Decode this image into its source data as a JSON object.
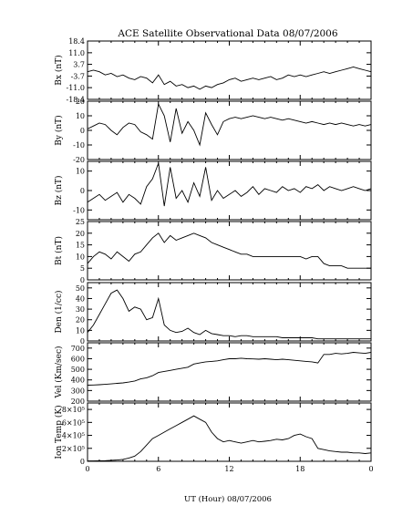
{
  "page": {
    "title": "ACE Satellite Observational Data   08/07/2006",
    "xlabel": "UT (Hour)   08/07/2006",
    "x_ticks": [
      "0",
      "6",
      "12",
      "18",
      "0"
    ]
  },
  "chart_data": [
    {
      "type": "line",
      "ylabel": "Bx (nT)",
      "ylim": [
        -18.4,
        18.4
      ],
      "yticks": [
        "18.4",
        "11.0",
        "3.7",
        "-3.7",
        "-11.0",
        "-18.4"
      ],
      "xlim": [
        0,
        24
      ],
      "x": [
        0,
        0.5,
        1,
        1.5,
        2,
        2.5,
        3,
        3.5,
        4,
        4.5,
        5,
        5.5,
        6,
        6.5,
        7,
        7.5,
        8,
        8.5,
        9,
        9.5,
        10,
        10.5,
        11,
        11.5,
        12,
        12.5,
        13,
        13.5,
        14,
        14.5,
        15,
        15.5,
        16,
        16.5,
        17,
        17.5,
        18,
        18.5,
        19,
        19.5,
        20,
        20.5,
        21,
        21.5,
        22,
        22.5,
        23,
        23.5,
        24
      ],
      "series": [
        {
          "values": [
            -1,
            0,
            -1,
            -3,
            -2,
            -4,
            -3,
            -5,
            -6,
            -4,
            -5,
            -8,
            -3,
            -9,
            -7,
            -10,
            -9,
            -11,
            -10,
            -12,
            -10,
            -11,
            -9,
            -8,
            -6,
            -5,
            -7,
            -6,
            -5,
            -6,
            -5,
            -4,
            -6,
            -5,
            -3,
            -4,
            -3,
            -4,
            -3,
            -2,
            -1,
            -2,
            -1,
            0,
            1,
            2,
            1,
            0,
            -1
          ]
        }
      ]
    },
    {
      "type": "line",
      "ylabel": "By (nT)",
      "ylim": [
        -20,
        20
      ],
      "yticks": [
        "20",
        "10",
        "0",
        "-10",
        "-20"
      ],
      "xlim": [
        0,
        24
      ],
      "x": [
        0,
        0.5,
        1,
        1.5,
        2,
        2.5,
        3,
        3.5,
        4,
        4.5,
        5,
        5.5,
        6,
        6.5,
        7,
        7.5,
        8,
        8.5,
        9,
        9.5,
        10,
        10.5,
        11,
        11.5,
        12,
        12.5,
        13,
        13.5,
        14,
        14.5,
        15,
        15.5,
        16,
        16.5,
        17,
        17.5,
        18,
        18.5,
        19,
        19.5,
        20,
        20.5,
        21,
        21.5,
        22,
        22.5,
        23,
        23.5,
        24
      ],
      "series": [
        {
          "values": [
            1,
            3,
            5,
            4,
            0,
            -3,
            2,
            5,
            4,
            -1,
            -3,
            -6,
            18,
            10,
            -8,
            15,
            -2,
            6,
            0,
            -10,
            12,
            4,
            -3,
            6,
            8,
            9,
            8,
            9,
            10,
            9,
            8,
            9,
            8,
            7,
            8,
            7,
            6,
            5,
            6,
            5,
            4,
            5,
            4,
            5,
            4,
            3,
            4,
            3,
            4
          ]
        }
      ]
    },
    {
      "type": "line",
      "ylabel": "Bz (nT)",
      "ylim": [
        -15,
        15
      ],
      "yticks": [
        "10",
        "0",
        "-10"
      ],
      "xlim": [
        0,
        24
      ],
      "x": [
        0,
        0.5,
        1,
        1.5,
        2,
        2.5,
        3,
        3.5,
        4,
        4.5,
        5,
        5.5,
        6,
        6.5,
        7,
        7.5,
        8,
        8.5,
        9,
        9.5,
        10,
        10.5,
        11,
        11.5,
        12,
        12.5,
        13,
        13.5,
        14,
        14.5,
        15,
        15.5,
        16,
        16.5,
        17,
        17.5,
        18,
        18.5,
        19,
        19.5,
        20,
        20.5,
        21,
        21.5,
        22,
        22.5,
        23,
        23.5,
        24
      ],
      "series": [
        {
          "values": [
            -6,
            -4,
            -2,
            -5,
            -3,
            -1,
            -6,
            -2,
            -4,
            -7,
            2,
            6,
            14,
            -8,
            12,
            -4,
            0,
            -6,
            4,
            -3,
            12,
            -5,
            0,
            -4,
            -2,
            0,
            -3,
            -1,
            2,
            -2,
            1,
            0,
            -1,
            2,
            0,
            1,
            -1,
            2,
            1,
            3,
            0,
            2,
            1,
            0,
            1,
            2,
            1,
            0,
            1
          ]
        }
      ]
    },
    {
      "type": "line",
      "ylabel": "Bt (nT)",
      "ylim": [
        0,
        25
      ],
      "yticks": [
        "25",
        "20",
        "15",
        "10",
        "5",
        "0"
      ],
      "xlim": [
        0,
        24
      ],
      "x": [
        0,
        0.5,
        1,
        1.5,
        2,
        2.5,
        3,
        3.5,
        4,
        4.5,
        5,
        5.5,
        6,
        6.5,
        7,
        7.5,
        8,
        8.5,
        9,
        9.5,
        10,
        10.5,
        11,
        11.5,
        12,
        12.5,
        13,
        13.5,
        14,
        14.5,
        15,
        15.5,
        16,
        16.5,
        17,
        17.5,
        18,
        18.5,
        19,
        19.5,
        20,
        20.5,
        21,
        21.5,
        22,
        22.5,
        23,
        23.5,
        24
      ],
      "series": [
        {
          "values": [
            7,
            10,
            12,
            11,
            9,
            12,
            10,
            8,
            11,
            12,
            15,
            18,
            20,
            16,
            19,
            17,
            18,
            19,
            20,
            19,
            18,
            16,
            15,
            14,
            13,
            12,
            11,
            11,
            10,
            10,
            10,
            10,
            10,
            10,
            10,
            10,
            10,
            9,
            10,
            10,
            7,
            6,
            6,
            6,
            5,
            5,
            5,
            5,
            5
          ]
        }
      ]
    },
    {
      "type": "line",
      "ylabel": "Den (1/cc)",
      "ylim": [
        0,
        55
      ],
      "yticks": [
        "50",
        "40",
        "30",
        "20",
        "10",
        "0"
      ],
      "xlim": [
        0,
        24
      ],
      "x": [
        0,
        0.5,
        1,
        1.5,
        2,
        2.5,
        3,
        3.5,
        4,
        4.5,
        5,
        5.5,
        6,
        6.5,
        7,
        7.5,
        8,
        8.5,
        9,
        9.5,
        10,
        10.5,
        11,
        11.5,
        12,
        12.5,
        13,
        13.5,
        14,
        14.5,
        15,
        15.5,
        16,
        16.5,
        17,
        17.5,
        18,
        18.5,
        19,
        19.5,
        20,
        20.5,
        21,
        21.5,
        22,
        22.5,
        23,
        23.5,
        24
      ],
      "series": [
        {
          "values": [
            8,
            15,
            25,
            35,
            45,
            48,
            40,
            28,
            32,
            30,
            20,
            22,
            40,
            15,
            10,
            8,
            9,
            12,
            8,
            6,
            10,
            7,
            6,
            5,
            5,
            4,
            5,
            5,
            4,
            4,
            4,
            4,
            4,
            3,
            3,
            3,
            3,
            3,
            3,
            2,
            2,
            2,
            2,
            2,
            2,
            2,
            2,
            2,
            2
          ]
        }
      ]
    },
    {
      "type": "line",
      "ylabel": "Vel (Km/sec)",
      "ylim": [
        200,
        750
      ],
      "yticks": [
        "700",
        "600",
        "500",
        "400",
        "300",
        "200"
      ],
      "xlim": [
        0,
        24
      ],
      "x": [
        0,
        0.5,
        1,
        1.5,
        2,
        2.5,
        3,
        3.5,
        4,
        4.5,
        5,
        5.5,
        6,
        6.5,
        7,
        7.5,
        8,
        8.5,
        9,
        9.5,
        10,
        10.5,
        11,
        11.5,
        12,
        12.5,
        13,
        13.5,
        14,
        14.5,
        15,
        15.5,
        16,
        16.5,
        17,
        17.5,
        18,
        18.5,
        19,
        19.5,
        20,
        20.5,
        21,
        21.5,
        22,
        22.5,
        23,
        23.5,
        24
      ],
      "series": [
        {
          "values": [
            350,
            352,
            355,
            358,
            362,
            368,
            372,
            380,
            390,
            410,
            420,
            440,
            470,
            480,
            490,
            500,
            510,
            520,
            550,
            560,
            570,
            575,
            580,
            590,
            600,
            600,
            605,
            600,
            598,
            595,
            600,
            595,
            590,
            595,
            590,
            585,
            580,
            575,
            570,
            560,
            640,
            640,
            650,
            645,
            650,
            660,
            655,
            650,
            660
          ]
        }
      ]
    },
    {
      "type": "line",
      "ylabel": "Ion Temp (K)",
      "ylim": [
        0,
        900000
      ],
      "yticks": [
        "8×10⁵",
        "6×10⁵",
        "4×10⁵",
        "2×10⁵",
        "0"
      ],
      "xlim": [
        0,
        24
      ],
      "x": [
        0,
        0.5,
        1,
        1.5,
        2,
        2.5,
        3,
        3.5,
        4,
        4.5,
        5,
        5.5,
        6,
        6.5,
        7,
        7.5,
        8,
        8.5,
        9,
        9.5,
        10,
        10.5,
        11,
        11.5,
        12,
        12.5,
        13,
        13.5,
        14,
        14.5,
        15,
        15.5,
        16,
        16.5,
        17,
        17.5,
        18,
        18.5,
        19,
        19.5,
        20,
        20.5,
        21,
        21.5,
        22,
        22.5,
        23,
        23.5,
        24
      ],
      "series": [
        {
          "values": [
            5000,
            6000,
            8000,
            10000,
            15000,
            20000,
            30000,
            50000,
            80000,
            150000,
            250000,
            350000,
            400000,
            450000,
            500000,
            550000,
            600000,
            650000,
            700000,
            650000,
            600000,
            450000,
            350000,
            300000,
            320000,
            300000,
            280000,
            300000,
            320000,
            300000,
            310000,
            320000,
            340000,
            330000,
            350000,
            400000,
            420000,
            380000,
            350000,
            200000,
            180000,
            160000,
            150000,
            140000,
            140000,
            130000,
            130000,
            120000,
            130000
          ]
        }
      ]
    }
  ]
}
